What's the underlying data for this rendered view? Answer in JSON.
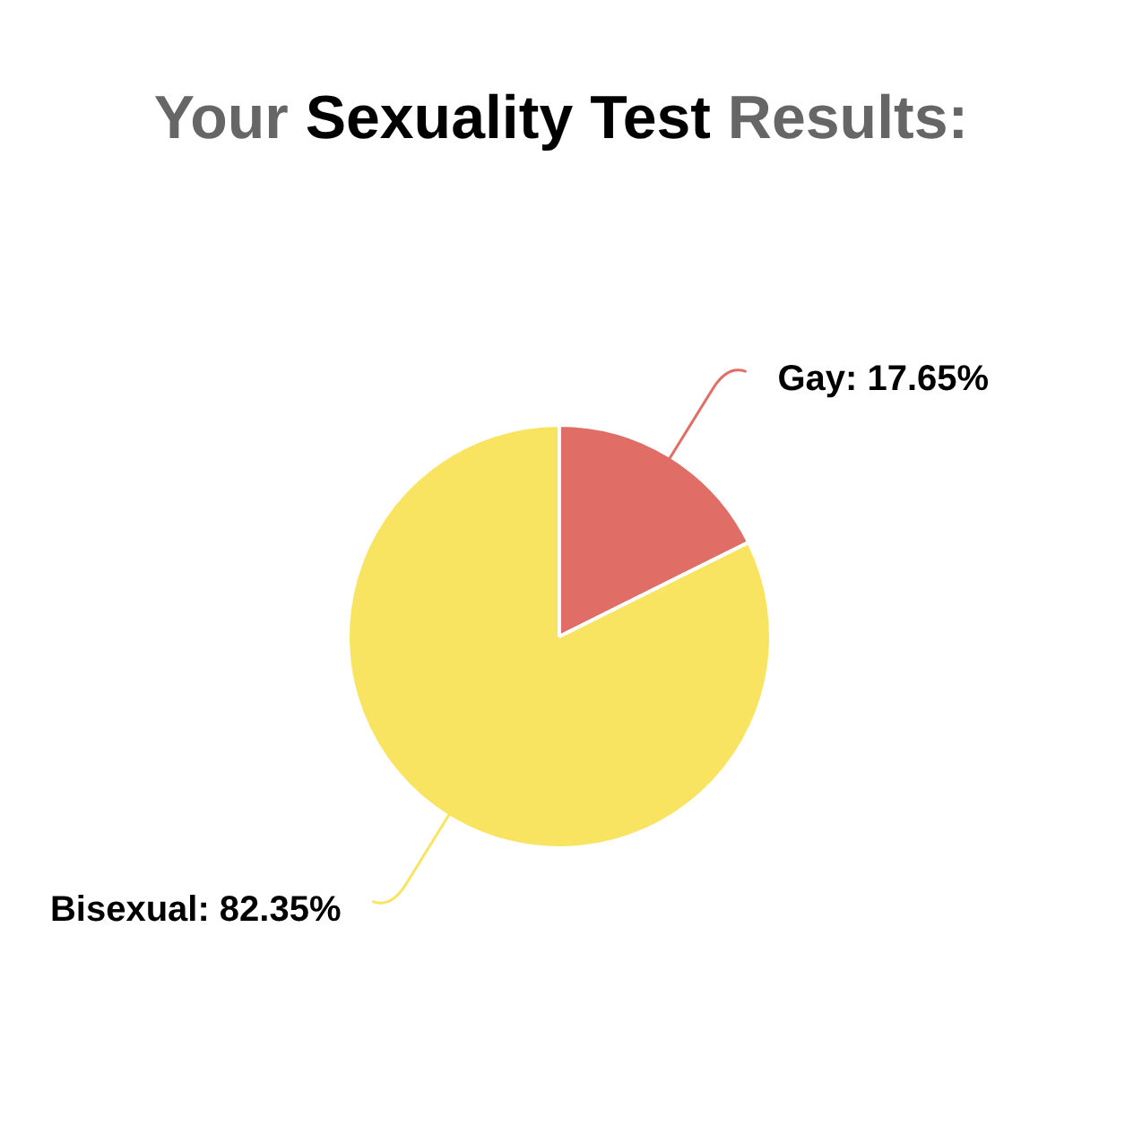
{
  "chart_data": {
    "type": "pie",
    "title": "Your Sexuality Test Results:",
    "categories": [
      "Gay",
      "Bisexual"
    ],
    "values": [
      17.65,
      82.35
    ],
    "colors": [
      "#e06e66",
      "#f9e462"
    ],
    "value_labels": [
      "17.65%",
      "82.35%"
    ]
  }
}
